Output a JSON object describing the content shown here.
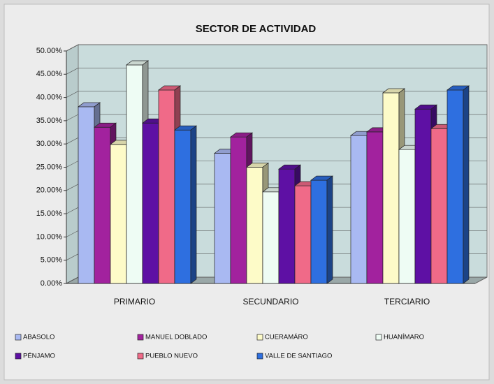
{
  "chart_data": {
    "type": "bar3d",
    "title": "SECTOR DE ACTIVIDAD",
    "categories": [
      "PRIMARIO",
      "SECUNDARIO",
      "TERCIARIO"
    ],
    "series": [
      {
        "name": "ABASOLO",
        "color": "#a9b9f2",
        "values": [
          38,
          28,
          31.8
        ]
      },
      {
        "name": "MANUEL DOBLADO",
        "color": "#a2229e",
        "values": [
          33.6,
          31.5,
          32.6
        ]
      },
      {
        "name": "CUERAMÁRO",
        "color": "#fdfbc8",
        "values": [
          29.9,
          25,
          41
        ]
      },
      {
        "name": "HUANÍMARO",
        "color": "#eefcf4",
        "values": [
          47,
          19.7,
          28.8
        ]
      },
      {
        "name": "PÉNJAMO",
        "color": "#5e10a4",
        "values": [
          34.5,
          24.6,
          37.5
        ]
      },
      {
        "name": "PUEBLO NUEVO",
        "color": "#f06a88",
        "values": [
          41.6,
          21,
          33.3
        ]
      },
      {
        "name": "VALLE DE SANTIAGO",
        "color": "#2e6fe0",
        "values": [
          33,
          22.2,
          41.6
        ]
      }
    ],
    "ylim": [
      0,
      50
    ],
    "yticks": [
      {
        "value": 0,
        "label": "0.00%"
      },
      {
        "value": 5,
        "label": "5.00%"
      },
      {
        "value": 10,
        "label": "10.00%"
      },
      {
        "value": 15,
        "label": "15.00%"
      },
      {
        "value": 20,
        "label": "20.00%"
      },
      {
        "value": 25,
        "label": "25.00%"
      },
      {
        "value": 30,
        "label": "30.00%"
      },
      {
        "value": 35,
        "label": "35.00%"
      },
      {
        "value": 40,
        "label": "40.00%"
      },
      {
        "value": 45,
        "label": "45.00%"
      },
      {
        "value": 50,
        "label": "50.00%"
      }
    ],
    "grid": true
  }
}
